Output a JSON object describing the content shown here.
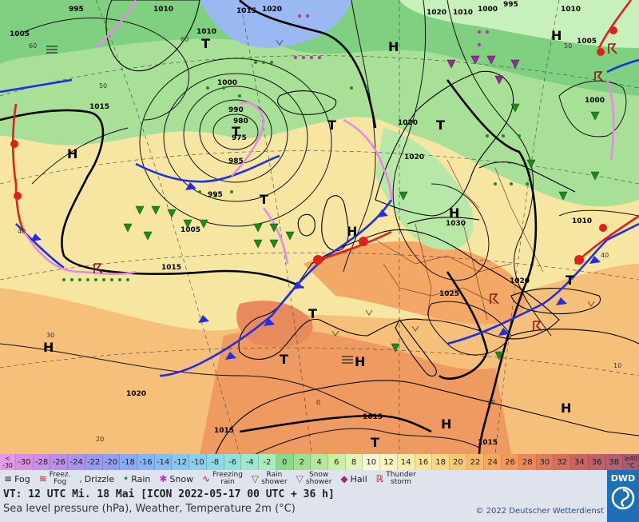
{
  "map": {
    "isobar_labels": [
      {
        "id": "i995a",
        "text": "995"
      },
      {
        "id": "i1010a",
        "text": "1010"
      },
      {
        "id": "i1005a",
        "text": "1005"
      },
      {
        "id": "i1015a",
        "text": "1015"
      },
      {
        "id": "i1020a",
        "text": "1020"
      },
      {
        "id": "i1010b",
        "text": "1010"
      },
      {
        "id": "i1000a",
        "text": "1000"
      },
      {
        "id": "i980",
        "text": "980"
      },
      {
        "id": "i975",
        "text": "975"
      },
      {
        "id": "i990",
        "text": "990"
      },
      {
        "id": "i985",
        "text": "985"
      },
      {
        "id": "i995b",
        "text": "995"
      },
      {
        "id": "i1005b",
        "text": "1005"
      },
      {
        "id": "i1015b",
        "text": "1015"
      },
      {
        "id": "i1015c",
        "text": "1015"
      },
      {
        "id": "i1020b",
        "text": "1020"
      },
      {
        "id": "i1020c",
        "text": "1020"
      },
      {
        "id": "i1030",
        "text": "1030"
      },
      {
        "id": "i1025",
        "text": "1025"
      },
      {
        "id": "i1020d",
        "text": "1020"
      },
      {
        "id": "i1020e",
        "text": "1020"
      },
      {
        "id": "i1010c",
        "text": "1010"
      },
      {
        "id": "i1000b",
        "text": "1000"
      },
      {
        "id": "i1005c",
        "text": "1005"
      },
      {
        "id": "i1010d",
        "text": "1010"
      },
      {
        "id": "i1000c",
        "text": "1000"
      },
      {
        "id": "i995c",
        "text": "995"
      },
      {
        "id": "i1010e",
        "text": "1010"
      },
      {
        "id": "i1020f",
        "text": "1020"
      },
      {
        "id": "i1015d",
        "text": "1015"
      },
      {
        "id": "i1015e",
        "text": "1015"
      },
      {
        "id": "i1015f",
        "text": "1015"
      }
    ],
    "pressure_centers": [
      {
        "id": "t1",
        "text": "T"
      },
      {
        "id": "t2",
        "text": "T"
      },
      {
        "id": "t3",
        "text": "T"
      },
      {
        "id": "t4",
        "text": "T"
      },
      {
        "id": "t5",
        "text": "T"
      },
      {
        "id": "t6",
        "text": "T"
      },
      {
        "id": "t7",
        "text": "T"
      },
      {
        "id": "t8",
        "text": "T"
      },
      {
        "id": "t9",
        "text": "T"
      },
      {
        "id": "h1",
        "text": "H"
      },
      {
        "id": "h2",
        "text": "H"
      },
      {
        "id": "h3",
        "text": "H"
      },
      {
        "id": "h4",
        "text": "H"
      },
      {
        "id": "h5",
        "text": "H"
      },
      {
        "id": "h6",
        "text": "H"
      },
      {
        "id": "h7",
        "text": "H"
      },
      {
        "id": "h8",
        "text": "H"
      },
      {
        "id": "h9",
        "text": "H"
      }
    ],
    "graticule_labels": [
      {
        "id": "g60a",
        "text": "60"
      },
      {
        "id": "g60b",
        "text": "60"
      },
      {
        "id": "g50a",
        "text": "50"
      },
      {
        "id": "g50b",
        "text": "50"
      },
      {
        "id": "g40a",
        "text": "40"
      },
      {
        "id": "g40b",
        "text": "40"
      },
      {
        "id": "g30a",
        "text": "30"
      },
      {
        "id": "g20a",
        "text": "20"
      },
      {
        "id": "g20b",
        "text": "20"
      },
      {
        "id": "g0",
        "text": "0"
      },
      {
        "id": "g10",
        "text": "10"
      }
    ],
    "colors": {
      "cold_front": "#1f2ee8",
      "warm_front": "#e0201c",
      "occlusion": "#e68ae6",
      "isobar": "#111111",
      "coast": "#000000",
      "border": "#8b3a2a"
    }
  },
  "colorbar": {
    "low_edge": [
      "<",
      "-30"
    ],
    "high_edge": [
      "≥40",
      "°C"
    ],
    "steps": [
      {
        "label": "-30",
        "color": "#d890e0"
      },
      {
        "label": "-28",
        "color": "#c890e6"
      },
      {
        "label": "-26",
        "color": "#b890ea"
      },
      {
        "label": "-24",
        "color": "#a893ee"
      },
      {
        "label": "-22",
        "color": "#9a98f2"
      },
      {
        "label": "-20",
        "color": "#8f9ff4"
      },
      {
        "label": "-18",
        "color": "#8aaaf6"
      },
      {
        "label": "-16",
        "color": "#86b4f6"
      },
      {
        "label": "-14",
        "color": "#84bef4"
      },
      {
        "label": "-12",
        "color": "#86c8f2"
      },
      {
        "label": "-10",
        "color": "#88d2ee"
      },
      {
        "label": "-8",
        "color": "#8ddae6"
      },
      {
        "label": "-6",
        "color": "#94e0da"
      },
      {
        "label": "-4",
        "color": "#9ee6cc"
      },
      {
        "label": "-2",
        "color": "#a8ecbc"
      },
      {
        "label": "0",
        "color": "#8ad88a"
      },
      {
        "label": "2",
        "color": "#9ee090"
      },
      {
        "label": "4",
        "color": "#b4e898"
      },
      {
        "label": "6",
        "color": "#caf0a4"
      },
      {
        "label": "8",
        "color": "#dff5b4"
      },
      {
        "label": "10",
        "color": "#f6f9d6"
      },
      {
        "label": "12",
        "color": "#fbf4c0"
      },
      {
        "label": "14",
        "color": "#fcecaa"
      },
      {
        "label": "16",
        "color": "#fce294"
      },
      {
        "label": "18",
        "color": "#fcd680"
      },
      {
        "label": "20",
        "color": "#fbc872"
      },
      {
        "label": "22",
        "color": "#f9b866"
      },
      {
        "label": "24",
        "color": "#f6a85c"
      },
      {
        "label": "26",
        "color": "#f29858"
      },
      {
        "label": "28",
        "color": "#ec8858"
      },
      {
        "label": "30",
        "color": "#e27a5a"
      },
      {
        "label": "32",
        "color": "#d86e5e"
      },
      {
        "label": "34",
        "color": "#cc6462"
      },
      {
        "label": "36",
        "color": "#c06068"
      },
      {
        "label": "38",
        "color": "#b45e6e"
      }
    ]
  },
  "legend": {
    "fog": "Fog",
    "freezing_fog": [
      "Freez.",
      "Fog"
    ],
    "drizzle": "Drizzle",
    "rain": "Rain",
    "snow": "Snow",
    "freezing_rain": [
      "Freezing",
      "rain"
    ],
    "rain_shower": [
      "Rain",
      "shower"
    ],
    "snow_shower": [
      "Snow",
      "shower"
    ],
    "hail": "Hail",
    "thunderstorm": [
      "Thunder",
      "storm"
    ]
  },
  "footer": {
    "valid_time": "VT: 12 UTC Mi.  18 Mai [ICON 2022-05-17  00 UTC + 36 h]",
    "description": "Sea level pressure (hPa), Weather, Temperature 2m (°C)",
    "copyright": "© 2022 Deutscher Wetterdienst"
  },
  "logo": {
    "text": "DWD"
  }
}
